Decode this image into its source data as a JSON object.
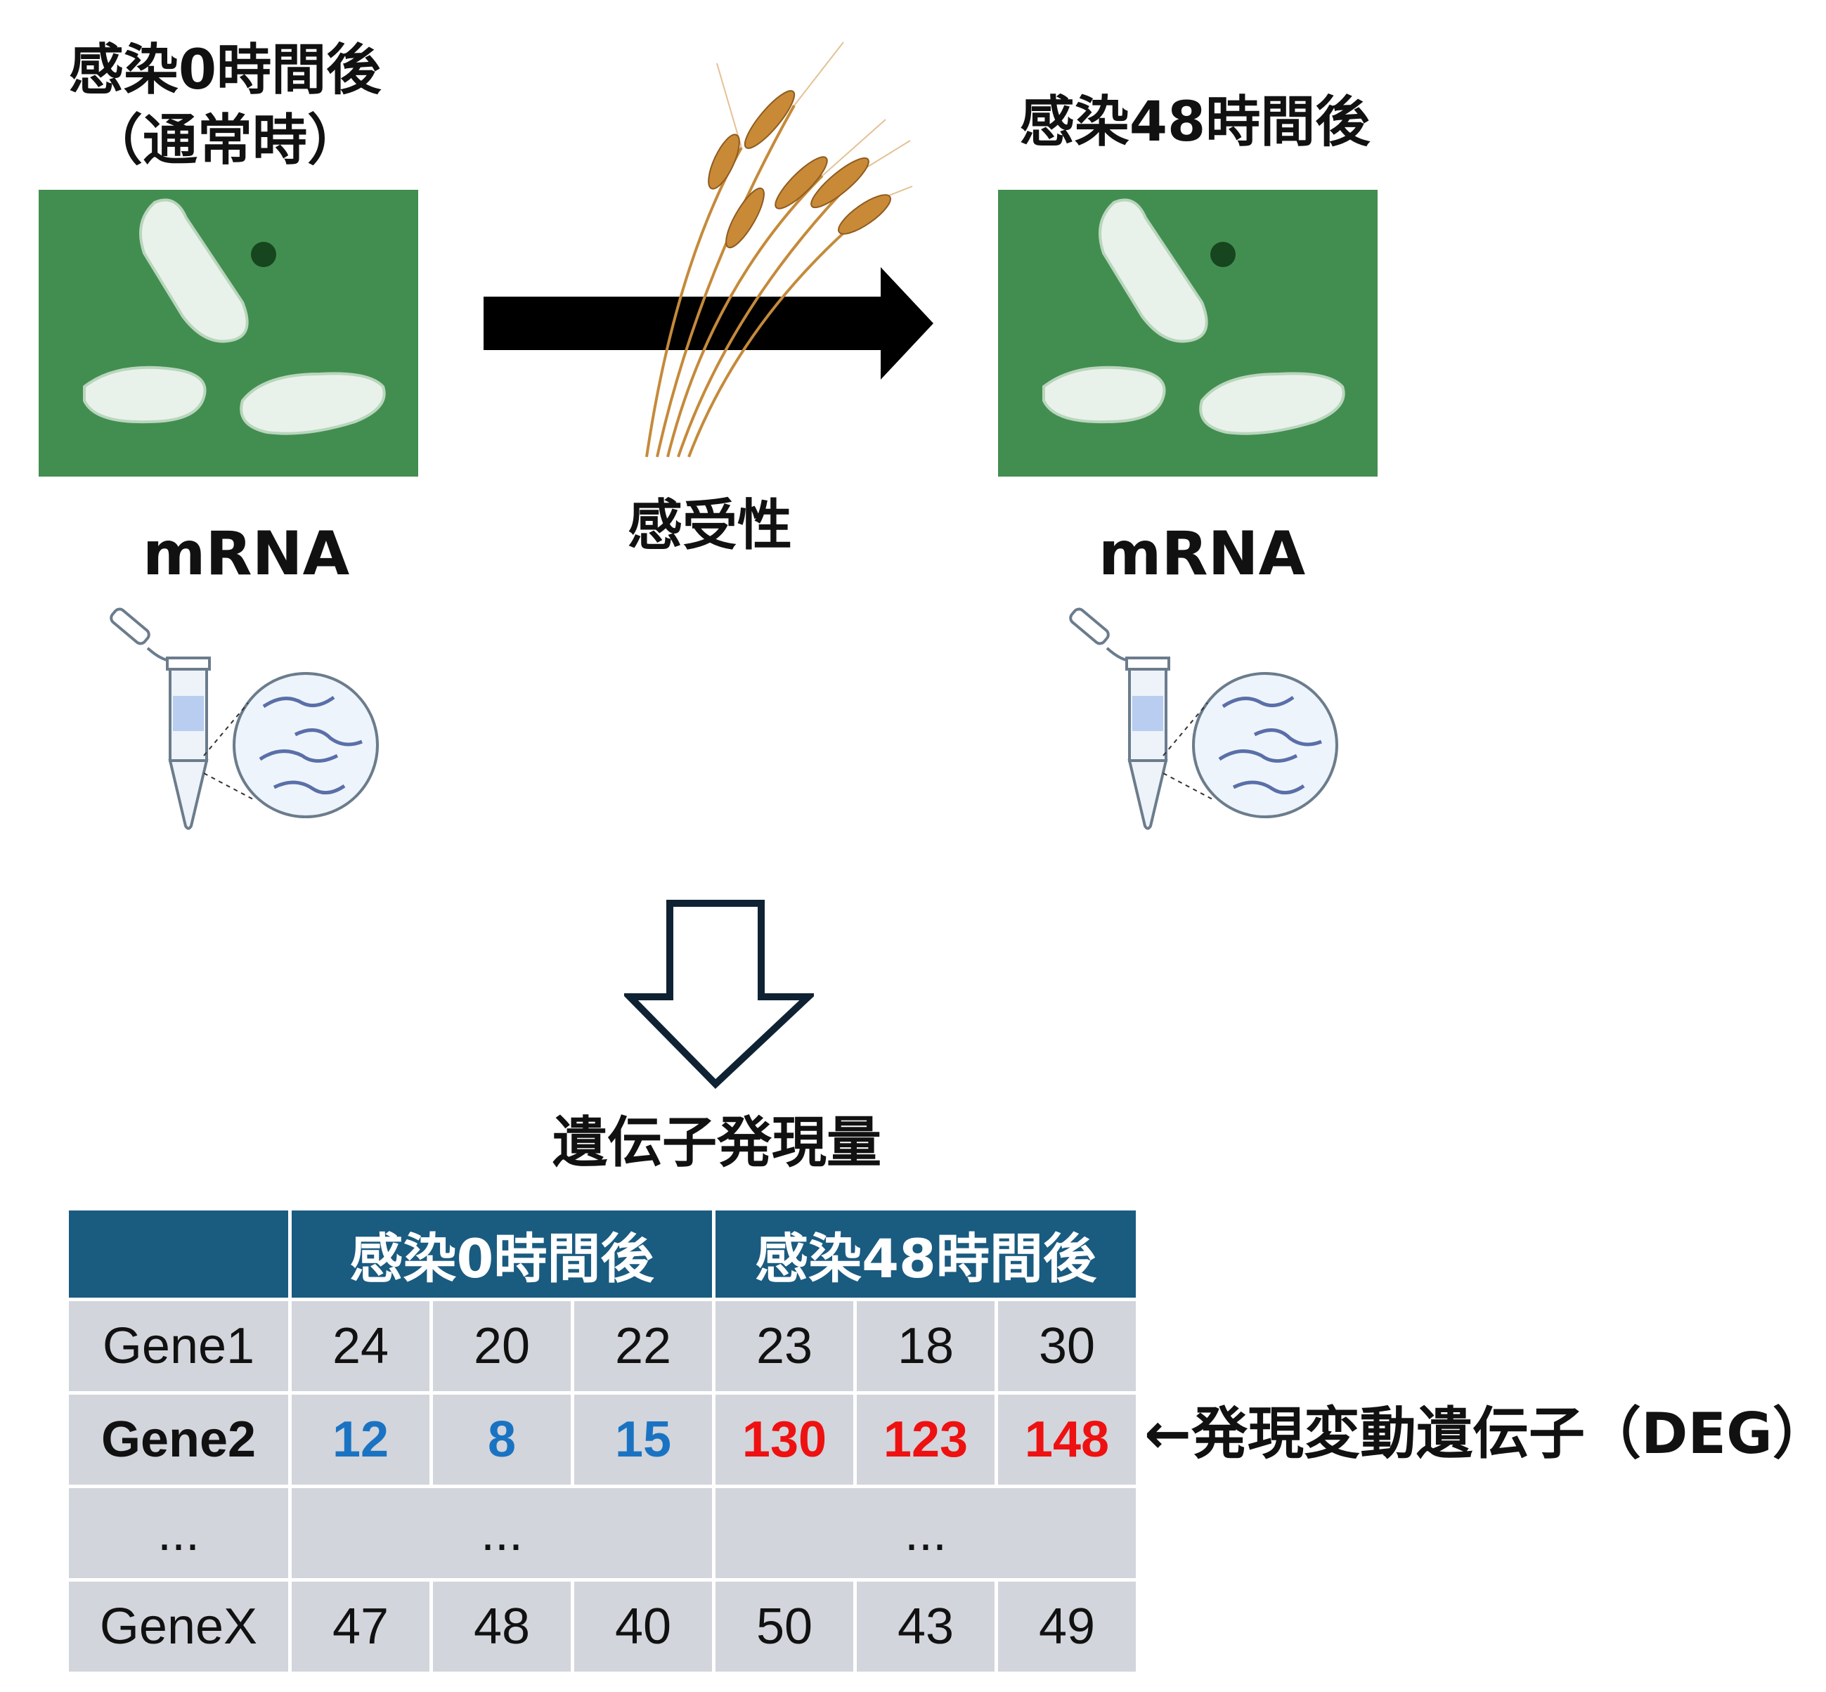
{
  "left_panel": {
    "title_line1": "感染0時間後",
    "title_line2": "（通常時）",
    "mrna_label": "mRNA"
  },
  "right_panel": {
    "title": "感染48時間後",
    "mrna_label": "mRNA"
  },
  "center": {
    "wheat_label": "感受性"
  },
  "result_title": "遺伝子発現量",
  "table": {
    "header": [
      "",
      "感染0時間後",
      "感染48時間後"
    ],
    "rows": [
      {
        "gene": "Gene1",
        "values": [
          "24",
          "20",
          "22",
          "23",
          "18",
          "30"
        ]
      },
      {
        "gene": "Gene2",
        "values": [
          "12",
          "8",
          "15",
          "130",
          "123",
          "148"
        ]
      },
      {
        "gene": "...",
        "values": [
          "...",
          "..."
        ]
      },
      {
        "gene": "GeneX",
        "values": [
          "47",
          "48",
          "40",
          "50",
          "43",
          "49"
        ]
      }
    ]
  },
  "deg_note": "←発現変動遺伝子（DEG）",
  "colors": {
    "header_bg": "#1a5b80",
    "cell_bg": "#d2d5db",
    "low_expression": "#1a73c2",
    "high_expression": "#ee1111",
    "micrograph_green": "#3e8a4c"
  }
}
